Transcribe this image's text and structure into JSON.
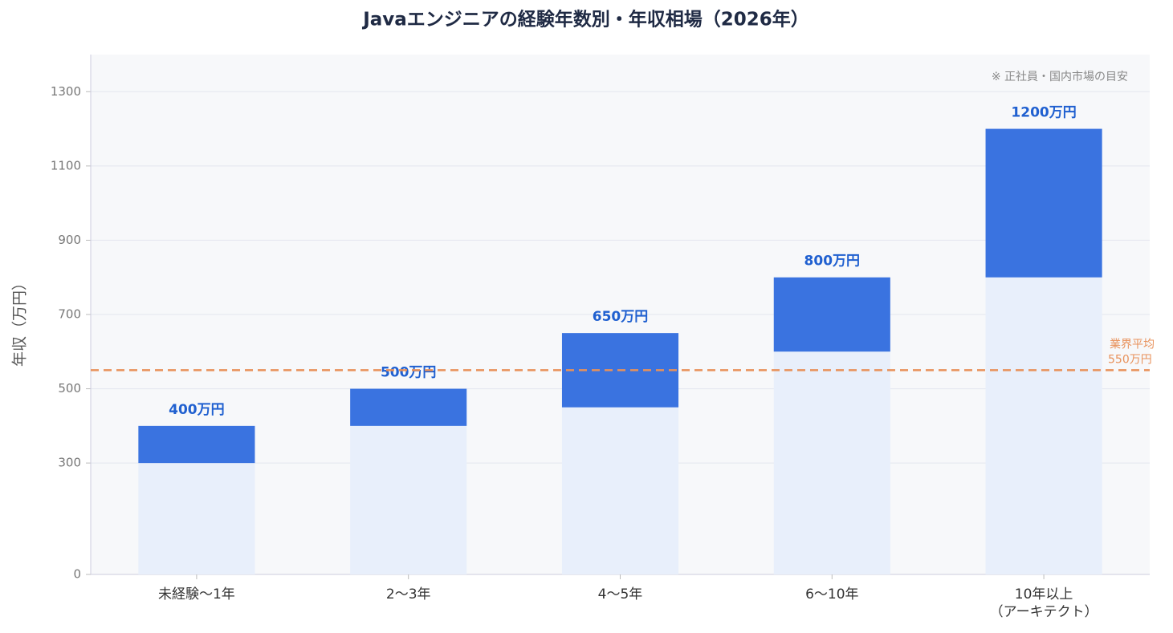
{
  "chart_data": {
    "type": "range_bar",
    "title": "Javaエンジニアの経験年数別・年収相場（2026年）",
    "y_label": "年収（万円）",
    "note": "※ 正社員・国内市場の目安",
    "categories": [
      "未経験〜1年",
      "2〜3年",
      "4〜5年",
      "6〜10年",
      "10年以上\n（アーキテクト）"
    ],
    "low": [
      300,
      400,
      450,
      600,
      800
    ],
    "high": [
      400,
      500,
      650,
      800,
      1200
    ],
    "value_labels": [
      "400万円",
      "500万円",
      "650万円",
      "800万円",
      "1200万円"
    ],
    "low_color": "#e8effb",
    "high_color": "#3a73e0",
    "label_color": "#2060d0",
    "ylim": [
      0,
      1400
    ],
    "yticks": [
      0,
      300,
      500,
      700,
      900,
      1100,
      1300
    ],
    "grid": true,
    "reference_line": {
      "value": 550,
      "value_label": "550万円",
      "label": "業界平均",
      "color": "#e8915a"
    }
  }
}
